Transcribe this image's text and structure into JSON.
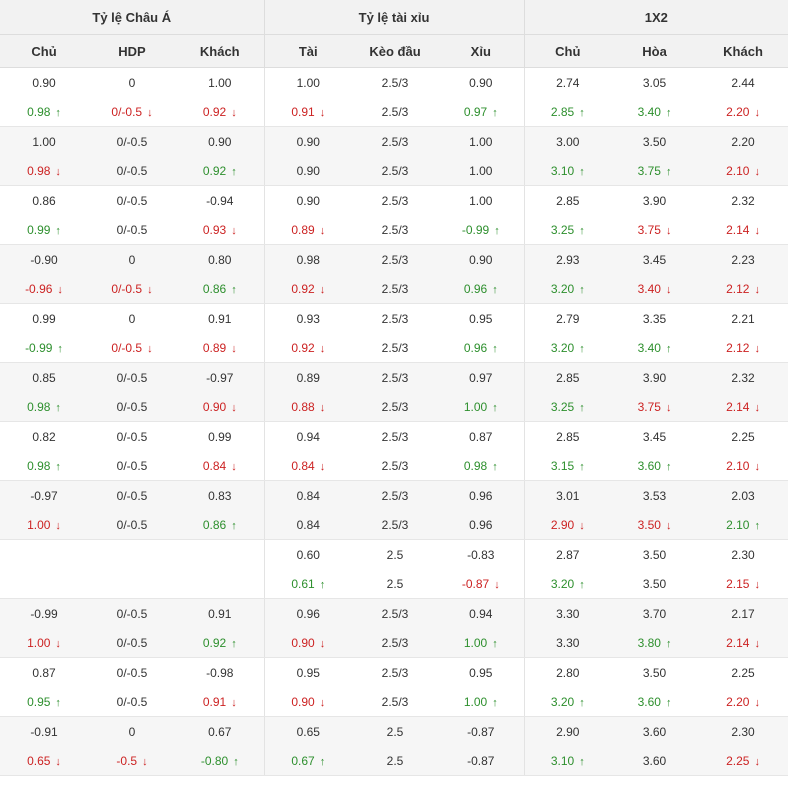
{
  "headers": {
    "groups": [
      "Tỷ lệ Châu Á",
      "Tỷ lệ tài xỉu",
      "1X2"
    ],
    "columns": [
      "Chủ",
      "HDP",
      "Khách",
      "Tài",
      "Kèo đầu",
      "Xỉu",
      "Chủ",
      "Hòa",
      "Khách"
    ]
  },
  "rows": [
    {
      "cells": [
        {
          "v": "0.90",
          "t": "n"
        },
        {
          "v": "0",
          "t": "n"
        },
        {
          "v": "1.00",
          "t": "n"
        },
        {
          "v": "1.00",
          "t": "n"
        },
        {
          "v": "2.5/3",
          "t": "n"
        },
        {
          "v": "0.90",
          "t": "n"
        },
        {
          "v": "2.74",
          "t": "n"
        },
        {
          "v": "3.05",
          "t": "n"
        },
        {
          "v": "2.44",
          "t": "n"
        }
      ]
    },
    {
      "cells": [
        {
          "v": "0.98",
          "t": "u"
        },
        {
          "v": "0/-0.5",
          "t": "d"
        },
        {
          "v": "0.92",
          "t": "d"
        },
        {
          "v": "0.91",
          "t": "d"
        },
        {
          "v": "2.5/3",
          "t": "n"
        },
        {
          "v": "0.97",
          "t": "u"
        },
        {
          "v": "2.85",
          "t": "u"
        },
        {
          "v": "3.40",
          "t": "u"
        },
        {
          "v": "2.20",
          "t": "d"
        }
      ]
    },
    {
      "cells": [
        {
          "v": "1.00",
          "t": "n"
        },
        {
          "v": "0/-0.5",
          "t": "n"
        },
        {
          "v": "0.90",
          "t": "n"
        },
        {
          "v": "0.90",
          "t": "n"
        },
        {
          "v": "2.5/3",
          "t": "n"
        },
        {
          "v": "1.00",
          "t": "n"
        },
        {
          "v": "3.00",
          "t": "n"
        },
        {
          "v": "3.50",
          "t": "n"
        },
        {
          "v": "2.20",
          "t": "n"
        }
      ]
    },
    {
      "cells": [
        {
          "v": "0.98",
          "t": "d"
        },
        {
          "v": "0/-0.5",
          "t": "n"
        },
        {
          "v": "0.92",
          "t": "u"
        },
        {
          "v": "0.90",
          "t": "n"
        },
        {
          "v": "2.5/3",
          "t": "n"
        },
        {
          "v": "1.00",
          "t": "n"
        },
        {
          "v": "3.10",
          "t": "u"
        },
        {
          "v": "3.75",
          "t": "u"
        },
        {
          "v": "2.10",
          "t": "d"
        }
      ]
    },
    {
      "cells": [
        {
          "v": "0.86",
          "t": "n"
        },
        {
          "v": "0/-0.5",
          "t": "n"
        },
        {
          "v": "-0.94",
          "t": "n"
        },
        {
          "v": "0.90",
          "t": "n"
        },
        {
          "v": "2.5/3",
          "t": "n"
        },
        {
          "v": "1.00",
          "t": "n"
        },
        {
          "v": "2.85",
          "t": "n"
        },
        {
          "v": "3.90",
          "t": "n"
        },
        {
          "v": "2.32",
          "t": "n"
        }
      ]
    },
    {
      "cells": [
        {
          "v": "0.99",
          "t": "u"
        },
        {
          "v": "0/-0.5",
          "t": "n"
        },
        {
          "v": "0.93",
          "t": "d"
        },
        {
          "v": "0.89",
          "t": "d"
        },
        {
          "v": "2.5/3",
          "t": "n"
        },
        {
          "v": "-0.99",
          "t": "u"
        },
        {
          "v": "3.25",
          "t": "u"
        },
        {
          "v": "3.75",
          "t": "d"
        },
        {
          "v": "2.14",
          "t": "d"
        }
      ]
    },
    {
      "cells": [
        {
          "v": "-0.90",
          "t": "n"
        },
        {
          "v": "0",
          "t": "n"
        },
        {
          "v": "0.80",
          "t": "n"
        },
        {
          "v": "0.98",
          "t": "n"
        },
        {
          "v": "2.5/3",
          "t": "n"
        },
        {
          "v": "0.90",
          "t": "n"
        },
        {
          "v": "2.93",
          "t": "n"
        },
        {
          "v": "3.45",
          "t": "n"
        },
        {
          "v": "2.23",
          "t": "n"
        }
      ]
    },
    {
      "cells": [
        {
          "v": "-0.96",
          "t": "d"
        },
        {
          "v": "0/-0.5",
          "t": "d"
        },
        {
          "v": "0.86",
          "t": "u"
        },
        {
          "v": "0.92",
          "t": "d"
        },
        {
          "v": "2.5/3",
          "t": "n"
        },
        {
          "v": "0.96",
          "t": "u"
        },
        {
          "v": "3.20",
          "t": "u"
        },
        {
          "v": "3.40",
          "t": "d"
        },
        {
          "v": "2.12",
          "t": "d"
        }
      ]
    },
    {
      "cells": [
        {
          "v": "0.99",
          "t": "n"
        },
        {
          "v": "0",
          "t": "n"
        },
        {
          "v": "0.91",
          "t": "n"
        },
        {
          "v": "0.93",
          "t": "n"
        },
        {
          "v": "2.5/3",
          "t": "n"
        },
        {
          "v": "0.95",
          "t": "n"
        },
        {
          "v": "2.79",
          "t": "n"
        },
        {
          "v": "3.35",
          "t": "n"
        },
        {
          "v": "2.21",
          "t": "n"
        }
      ]
    },
    {
      "cells": [
        {
          "v": "-0.99",
          "t": "u"
        },
        {
          "v": "0/-0.5",
          "t": "d"
        },
        {
          "v": "0.89",
          "t": "d"
        },
        {
          "v": "0.92",
          "t": "d"
        },
        {
          "v": "2.5/3",
          "t": "n"
        },
        {
          "v": "0.96",
          "t": "u"
        },
        {
          "v": "3.20",
          "t": "u"
        },
        {
          "v": "3.40",
          "t": "u"
        },
        {
          "v": "2.12",
          "t": "d"
        }
      ]
    },
    {
      "cells": [
        {
          "v": "0.85",
          "t": "n"
        },
        {
          "v": "0/-0.5",
          "t": "n"
        },
        {
          "v": "-0.97",
          "t": "n"
        },
        {
          "v": "0.89",
          "t": "n"
        },
        {
          "v": "2.5/3",
          "t": "n"
        },
        {
          "v": "0.97",
          "t": "n"
        },
        {
          "v": "2.85",
          "t": "n"
        },
        {
          "v": "3.90",
          "t": "n"
        },
        {
          "v": "2.32",
          "t": "n"
        }
      ]
    },
    {
      "cells": [
        {
          "v": "0.98",
          "t": "u"
        },
        {
          "v": "0/-0.5",
          "t": "n"
        },
        {
          "v": "0.90",
          "t": "d"
        },
        {
          "v": "0.88",
          "t": "d"
        },
        {
          "v": "2.5/3",
          "t": "n"
        },
        {
          "v": "1.00",
          "t": "u"
        },
        {
          "v": "3.25",
          "t": "u"
        },
        {
          "v": "3.75",
          "t": "d"
        },
        {
          "v": "2.14",
          "t": "d"
        }
      ]
    },
    {
      "cells": [
        {
          "v": "0.82",
          "t": "n"
        },
        {
          "v": "0/-0.5",
          "t": "n"
        },
        {
          "v": "0.99",
          "t": "n"
        },
        {
          "v": "0.94",
          "t": "n"
        },
        {
          "v": "2.5/3",
          "t": "n"
        },
        {
          "v": "0.87",
          "t": "n"
        },
        {
          "v": "2.85",
          "t": "n"
        },
        {
          "v": "3.45",
          "t": "n"
        },
        {
          "v": "2.25",
          "t": "n"
        }
      ]
    },
    {
      "cells": [
        {
          "v": "0.98",
          "t": "u"
        },
        {
          "v": "0/-0.5",
          "t": "n"
        },
        {
          "v": "0.84",
          "t": "d"
        },
        {
          "v": "0.84",
          "t": "d"
        },
        {
          "v": "2.5/3",
          "t": "n"
        },
        {
          "v": "0.98",
          "t": "u"
        },
        {
          "v": "3.15",
          "t": "u"
        },
        {
          "v": "3.60",
          "t": "u"
        },
        {
          "v": "2.10",
          "t": "d"
        }
      ]
    },
    {
      "cells": [
        {
          "v": "-0.97",
          "t": "n"
        },
        {
          "v": "0/-0.5",
          "t": "n"
        },
        {
          "v": "0.83",
          "t": "n"
        },
        {
          "v": "0.84",
          "t": "n"
        },
        {
          "v": "2.5/3",
          "t": "n"
        },
        {
          "v": "0.96",
          "t": "n"
        },
        {
          "v": "3.01",
          "t": "n"
        },
        {
          "v": "3.53",
          "t": "n"
        },
        {
          "v": "2.03",
          "t": "n"
        }
      ]
    },
    {
      "cells": [
        {
          "v": "1.00",
          "t": "d"
        },
        {
          "v": "0/-0.5",
          "t": "n"
        },
        {
          "v": "0.86",
          "t": "u"
        },
        {
          "v": "0.84",
          "t": "n"
        },
        {
          "v": "2.5/3",
          "t": "n"
        },
        {
          "v": "0.96",
          "t": "n"
        },
        {
          "v": "2.90",
          "t": "d"
        },
        {
          "v": "3.50",
          "t": "d"
        },
        {
          "v": "2.10",
          "t": "u"
        }
      ]
    },
    {
      "cells": [
        {
          "v": "",
          "t": "n"
        },
        {
          "v": "",
          "t": "n"
        },
        {
          "v": "",
          "t": "n"
        },
        {
          "v": "0.60",
          "t": "n"
        },
        {
          "v": "2.5",
          "t": "n"
        },
        {
          "v": "-0.83",
          "t": "n"
        },
        {
          "v": "2.87",
          "t": "n"
        },
        {
          "v": "3.50",
          "t": "n"
        },
        {
          "v": "2.30",
          "t": "n"
        }
      ]
    },
    {
      "cells": [
        {
          "v": "",
          "t": "n"
        },
        {
          "v": "",
          "t": "n"
        },
        {
          "v": "",
          "t": "n"
        },
        {
          "v": "0.61",
          "t": "u"
        },
        {
          "v": "2.5",
          "t": "n"
        },
        {
          "v": "-0.87",
          "t": "d"
        },
        {
          "v": "3.20",
          "t": "u"
        },
        {
          "v": "3.50",
          "t": "n"
        },
        {
          "v": "2.15",
          "t": "d"
        }
      ]
    },
    {
      "cells": [
        {
          "v": "-0.99",
          "t": "n"
        },
        {
          "v": "0/-0.5",
          "t": "n"
        },
        {
          "v": "0.91",
          "t": "n"
        },
        {
          "v": "0.96",
          "t": "n"
        },
        {
          "v": "2.5/3",
          "t": "n"
        },
        {
          "v": "0.94",
          "t": "n"
        },
        {
          "v": "3.30",
          "t": "n"
        },
        {
          "v": "3.70",
          "t": "n"
        },
        {
          "v": "2.17",
          "t": "n"
        }
      ]
    },
    {
      "cells": [
        {
          "v": "1.00",
          "t": "d"
        },
        {
          "v": "0/-0.5",
          "t": "n"
        },
        {
          "v": "0.92",
          "t": "u"
        },
        {
          "v": "0.90",
          "t": "d"
        },
        {
          "v": "2.5/3",
          "t": "n"
        },
        {
          "v": "1.00",
          "t": "u"
        },
        {
          "v": "3.30",
          "t": "n"
        },
        {
          "v": "3.80",
          "t": "u"
        },
        {
          "v": "2.14",
          "t": "d"
        }
      ]
    },
    {
      "cells": [
        {
          "v": "0.87",
          "t": "n"
        },
        {
          "v": "0/-0.5",
          "t": "n"
        },
        {
          "v": "-0.98",
          "t": "n"
        },
        {
          "v": "0.95",
          "t": "n"
        },
        {
          "v": "2.5/3",
          "t": "n"
        },
        {
          "v": "0.95",
          "t": "n"
        },
        {
          "v": "2.80",
          "t": "n"
        },
        {
          "v": "3.50",
          "t": "n"
        },
        {
          "v": "2.25",
          "t": "n"
        }
      ]
    },
    {
      "cells": [
        {
          "v": "0.95",
          "t": "u"
        },
        {
          "v": "0/-0.5",
          "t": "n"
        },
        {
          "v": "0.91",
          "t": "d"
        },
        {
          "v": "0.90",
          "t": "d"
        },
        {
          "v": "2.5/3",
          "t": "n"
        },
        {
          "v": "1.00",
          "t": "u"
        },
        {
          "v": "3.20",
          "t": "u"
        },
        {
          "v": "3.60",
          "t": "u"
        },
        {
          "v": "2.20",
          "t": "d"
        }
      ]
    },
    {
      "cells": [
        {
          "v": "-0.91",
          "t": "n"
        },
        {
          "v": "0",
          "t": "n"
        },
        {
          "v": "0.67",
          "t": "n"
        },
        {
          "v": "0.65",
          "t": "n"
        },
        {
          "v": "2.5",
          "t": "n"
        },
        {
          "v": "-0.87",
          "t": "n"
        },
        {
          "v": "2.90",
          "t": "n"
        },
        {
          "v": "3.60",
          "t": "n"
        },
        {
          "v": "2.30",
          "t": "n"
        }
      ]
    },
    {
      "cells": [
        {
          "v": "0.65",
          "t": "d"
        },
        {
          "v": "-0.5",
          "t": "d"
        },
        {
          "v": "-0.80",
          "t": "u"
        },
        {
          "v": "0.67",
          "t": "u"
        },
        {
          "v": "2.5",
          "t": "n"
        },
        {
          "v": "-0.87",
          "t": "n"
        },
        {
          "v": "3.10",
          "t": "u"
        },
        {
          "v": "3.60",
          "t": "n"
        },
        {
          "v": "2.25",
          "t": "d"
        }
      ]
    }
  ],
  "colors": {
    "up": "#2d8f2d",
    "down": "#cc2222",
    "neutral": "#333333"
  },
  "icons": {
    "up": "arrow-up-icon",
    "down": "arrow-down-icon"
  }
}
